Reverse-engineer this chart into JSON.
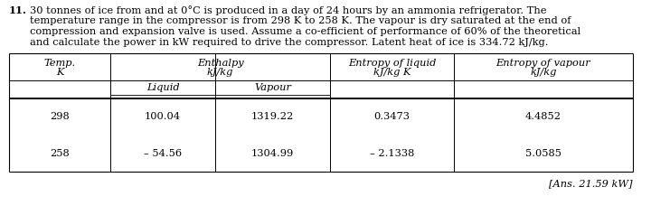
{
  "problem_number": "11.",
  "problem_lines": [
    "30 tonnes of ice from and at 0°C is produced in a day of 24 hours by an ammonia refrigerator. The",
    "temperature range in the compressor is from 298 K to 258 K. The vapour is dry saturated at the end of",
    "compression and expansion valve is used. Assume a co-efficient of performance of 60% of the theoretical",
    "and calculate the power in kW required to drive the compressor. Latent heat of ice is 334.72 kJ/kg."
  ],
  "table_rows": [
    [
      "298",
      "100.04",
      "1319.22",
      "0.3473",
      "4.4852"
    ],
    [
      "258",
      "– 54.56",
      "1304.99",
      "– 2.1338",
      "5.0585"
    ]
  ],
  "answer": "[Ans. 21.59 kW]",
  "bg_color": "#ffffff",
  "text_color": "#000000"
}
